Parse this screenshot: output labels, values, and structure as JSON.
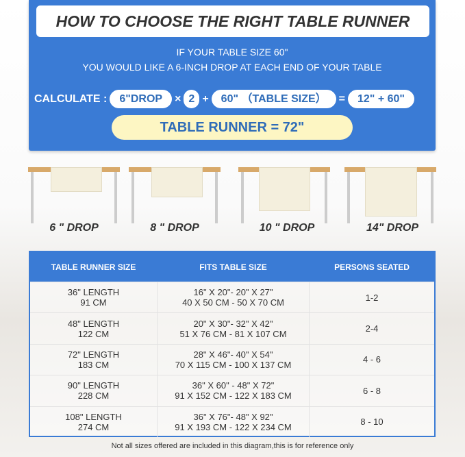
{
  "header": {
    "title": "HOW TO CHOOSE THE RIGHT TABLE RUNNER",
    "line1": "IF YOUR TABLE SIZE 60\"",
    "line2": "YOU WOULD LIKE A 6-INCH DROP AT EACH END OF YOUR TABLE"
  },
  "calc": {
    "label": "CALCULATE :",
    "drop": "6\"DROP",
    "times": "×",
    "two": "2",
    "plus": "+",
    "table": "60\" （TABLE SIZE）",
    "equals": "=",
    "sum": "12\" + 60\"",
    "result": "TABLE RUNNER = 72\""
  },
  "drops": [
    "6 \" DROP",
    "8 \" DROP",
    "10 \" DROP",
    "14\" DROP"
  ],
  "table": {
    "headers": [
      "TABLE RUNNER SIZE",
      "FITS TABLE SIZE",
      "PERSONS SEATED"
    ],
    "rows": [
      {
        "size": "36\" LENGTH",
        "size_cm": "91 CM",
        "fits": "16\" X 20\"- 20\" X 27\"",
        "fits_cm": "40 X 50 CM - 50 X 70 CM",
        "persons": "1-2"
      },
      {
        "size": "48\" LENGTH",
        "size_cm": "122 CM",
        "fits": "20\" X 30\"- 32\" X 42\"",
        "fits_cm": "51 X 76 CM - 81 X 107 CM",
        "persons": "2-4"
      },
      {
        "size": "72\" LENGTH",
        "size_cm": "183 CM",
        "fits": "28\" X 46\"- 40\" X 54\"",
        "fits_cm": "70 X 115 CM - 100 X 137 CM",
        "persons": "4 - 6"
      },
      {
        "size": "90\" LENGTH",
        "size_cm": "228 CM",
        "fits": "36\" X 60\" - 48\" X 72\"",
        "fits_cm": "91 X 152 CM - 122 X 183 CM",
        "persons": "6 - 8"
      },
      {
        "size": "108\" LENGTH",
        "size_cm": "274 CM",
        "fits": "36\" X 76\"- 48\" X 92\"",
        "fits_cm": "91 X 193 CM - 122 X 234 CM",
        "persons": "8 - 10"
      }
    ]
  },
  "footer": "Not all sizes offered are included in this diagram,this is for reference only",
  "colors": {
    "blue": "#3a7bd5",
    "yellow": "#fdf6c3",
    "wood": "#d8a96a"
  }
}
